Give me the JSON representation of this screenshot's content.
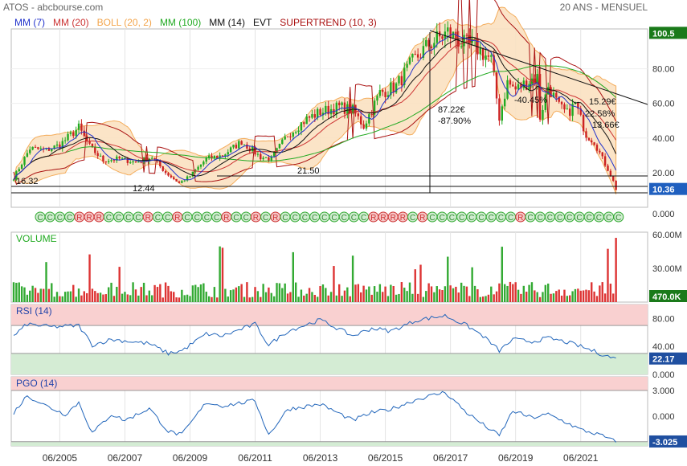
{
  "title": "ATOS - abcbourse.com",
  "period": "20 ANS - MENSUEL",
  "colors": {
    "price_up": "#22aa22",
    "price_down": "#cc2222",
    "mm7": "#2233cc",
    "mm20": "#cc3333",
    "boll": "#f3a44a",
    "mm100": "#22aa22",
    "mm14": "#111111",
    "supertrend": "#aa1111",
    "rsi_line": "#2266bb",
    "over_zone": "#f9d0d0",
    "under_zone": "#d4ecd4",
    "value_box": "#1a7a1a"
  },
  "legend": [
    {
      "label": "MM (7)",
      "color": "#2233cc"
    },
    {
      "label": "MM (20)",
      "color": "#cc3333"
    },
    {
      "label": "BOLL (20, 2)",
      "color": "#f3a44a"
    },
    {
      "label": "MM (100)",
      "color": "#22aa22"
    },
    {
      "label": "MM (14)",
      "color": "#111111"
    },
    {
      "label": "EVT",
      "color": "#111111"
    },
    {
      "label": "SUPERTREND (10, 3)",
      "color": "#aa1111"
    }
  ],
  "chart_data": [
    {
      "type": "candlestick",
      "name": "price",
      "x_ticks": [
        "06/2005",
        "06/2007",
        "06/2009",
        "06/2011",
        "06/2013",
        "06/2015",
        "06/2017",
        "06/2019",
        "06/2021"
      ],
      "x_range": [
        "2004-01",
        "2022-08"
      ],
      "ylim": [
        0,
        103
      ],
      "y_ticks": [
        "100.5",
        "80.00",
        "60.00",
        "40.00",
        "20.00",
        "10.36",
        "0.000"
      ],
      "price_anchors": [
        [
          "2004-01",
          17
        ],
        [
          "2004-07",
          34
        ],
        [
          "2005-01",
          33
        ],
        [
          "2005-06",
          36
        ],
        [
          "2006-01",
          46
        ],
        [
          "2006-05",
          35
        ],
        [
          "2006-10",
          27
        ],
        [
          "2007-04",
          28
        ],
        [
          "2007-10",
          26
        ],
        [
          "2008-04",
          29
        ],
        [
          "2008-09",
          20
        ],
        [
          "2009-02",
          14
        ],
        [
          "2009-06",
          18
        ],
        [
          "2009-12",
          28
        ],
        [
          "2010-06",
          30
        ],
        [
          "2011-01",
          38
        ],
        [
          "2011-08",
          29
        ],
        [
          "2011-12",
          28
        ],
        [
          "2012-06",
          42
        ],
        [
          "2013-01",
          51
        ],
        [
          "2013-06",
          55
        ],
        [
          "2014-01",
          58
        ],
        [
          "2014-06",
          56
        ],
        [
          "2014-10",
          47
        ],
        [
          "2015-04",
          66
        ],
        [
          "2015-10",
          70
        ],
        [
          "2016-04",
          84
        ],
        [
          "2016-10",
          94
        ],
        [
          "2017-05",
          101
        ],
        [
          "2017-11",
          94
        ],
        [
          "2018-03",
          93
        ],
        [
          "2018-09",
          85
        ],
        [
          "2018-12",
          52
        ],
        [
          "2019-03",
          72
        ],
        [
          "2019-06",
          68
        ],
        [
          "2019-12",
          74
        ],
        [
          "2020-02",
          75
        ],
        [
          "2020-03",
          52
        ],
        [
          "2020-06",
          70
        ],
        [
          "2020-10",
          58
        ],
        [
          "2021-01",
          54
        ],
        [
          "2021-04",
          60
        ],
        [
          "2021-08",
          42
        ],
        [
          "2021-11",
          38
        ],
        [
          "2022-02",
          28
        ],
        [
          "2022-04",
          22
        ],
        [
          "2022-06",
          15
        ],
        [
          "2022-07",
          10.36
        ]
      ],
      "annotations": [
        {
          "text": "16.32"
        },
        {
          "text": "12.44"
        },
        {
          "text": "21.50"
        },
        {
          "text": "87.22€"
        },
        {
          "text": "-87.90%"
        },
        {
          "text": "-40.45%"
        },
        {
          "text": "15.29€"
        },
        {
          "text": "22.58%"
        },
        {
          "text": "13.66€"
        }
      ],
      "last_value": "10.36",
      "top_value": "100.5"
    },
    {
      "type": "bar",
      "name": "VOLUME",
      "y_ticks": [
        "60.00M",
        "30.00M"
      ],
      "last_value": "470.0K",
      "ylim": [
        0,
        62
      ]
    },
    {
      "type": "line",
      "name": "RSI (14)",
      "ylim": [
        0,
        100
      ],
      "y_ticks": [
        "80.00",
        "40.00",
        "0.000"
      ],
      "last_value": "22.17",
      "anchors": [
        [
          "2004-01",
          55
        ],
        [
          "2004-06",
          72
        ],
        [
          "2005-03",
          68
        ],
        [
          "2006-01",
          70
        ],
        [
          "2006-06",
          42
        ],
        [
          "2007-01",
          50
        ],
        [
          "2007-06",
          48
        ],
        [
          "2008-03",
          44
        ],
        [
          "2008-10",
          30
        ],
        [
          "2009-03",
          34
        ],
        [
          "2009-12",
          58
        ],
        [
          "2010-06",
          55
        ],
        [
          "2011-06",
          72
        ],
        [
          "2011-11",
          42
        ],
        [
          "2012-06",
          62
        ],
        [
          "2013-06",
          78
        ],
        [
          "2014-06",
          55
        ],
        [
          "2015-01",
          66
        ],
        [
          "2015-08",
          62
        ],
        [
          "2016-06",
          78
        ],
        [
          "2017-04",
          84
        ],
        [
          "2017-12",
          70
        ],
        [
          "2018-06",
          55
        ],
        [
          "2018-12",
          34
        ],
        [
          "2019-05",
          50
        ],
        [
          "2019-12",
          47
        ],
        [
          "2020-06",
          52
        ],
        [
          "2021-01",
          46
        ],
        [
          "2021-06",
          40
        ],
        [
          "2022-01",
          30
        ],
        [
          "2022-07",
          22.17
        ]
      ]
    },
    {
      "type": "line",
      "name": "PGO (14)",
      "ylim": [
        -3.5,
        4.6
      ],
      "y_ticks": [
        "3.000",
        "0.000"
      ],
      "last_value": "-3.025",
      "anchors": [
        [
          "2004-01",
          0.4
        ],
        [
          "2004-06",
          2.4
        ],
        [
          "2005-01",
          1.2
        ],
        [
          "2005-08",
          0.2
        ],
        [
          "2006-01",
          1.6
        ],
        [
          "2006-06",
          -2.0
        ],
        [
          "2007-01",
          0.2
        ],
        [
          "2007-06",
          -0.5
        ],
        [
          "2008-03",
          0.9
        ],
        [
          "2008-10",
          -1.8
        ],
        [
          "2009-03",
          -2.2
        ],
        [
          "2009-12",
          1.6
        ],
        [
          "2010-06",
          1.2
        ],
        [
          "2011-06",
          1.8
        ],
        [
          "2011-11",
          -2.2
        ],
        [
          "2012-06",
          0.8
        ],
        [
          "2013-06",
          1.4
        ],
        [
          "2014-06",
          -0.5
        ],
        [
          "2015-01",
          0.4
        ],
        [
          "2015-08",
          0.8
        ],
        [
          "2016-06",
          2.0
        ],
        [
          "2017-04",
          2.8
        ],
        [
          "2017-12",
          0.4
        ],
        [
          "2018-06",
          -1.0
        ],
        [
          "2018-12",
          -2.3
        ],
        [
          "2019-05",
          0.6
        ],
        [
          "2019-12",
          -0.2
        ],
        [
          "2020-06",
          0.2
        ],
        [
          "2021-01",
          -0.8
        ],
        [
          "2021-06",
          -1.6
        ],
        [
          "2022-01",
          -2.2
        ],
        [
          "2022-07",
          -3.025
        ]
      ]
    }
  ]
}
